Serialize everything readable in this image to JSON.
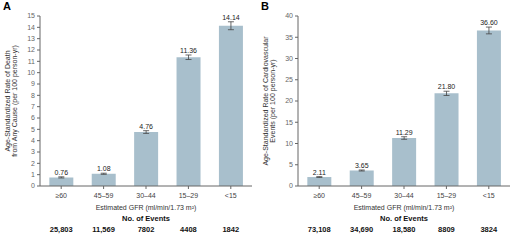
{
  "chart_data": [
    {
      "type": "bar",
      "title": "A",
      "categories": [
        "≥60",
        "45–59",
        "30–44",
        "15–29",
        "<15"
      ],
      "values": [
        0.76,
        1.08,
        4.76,
        11.36,
        14.14
      ],
      "errors": [
        0.05,
        0.05,
        0.12,
        0.2,
        0.35
      ],
      "data_labels": true,
      "value_labels": [
        "0.76",
        "1.08",
        "4.76",
        "11.36",
        "14.14"
      ],
      "xlabel": "Estimated GFR (ml/min/1.73 m²)",
      "ylabel": "Age-Standardized Rate of Death\nfrom Any Cause (per 100 person-yr)",
      "ylim": [
        0,
        15
      ],
      "yticks": [
        0,
        1,
        2,
        3,
        4,
        5,
        6,
        7,
        8,
        9,
        10,
        11,
        12,
        13,
        14,
        15
      ],
      "color": "#a8bfcc",
      "grid": false,
      "events": {
        "label": "No. of Events",
        "values": [
          "25,803",
          "11,569",
          "7802",
          "4408",
          "1842"
        ]
      }
    },
    {
      "type": "bar",
      "title": "B",
      "categories": [
        "≥60",
        "45–59",
        "30–44",
        "15–29",
        "<15"
      ],
      "values": [
        2.11,
        3.65,
        11.29,
        21.8,
        36.6
      ],
      "errors": [
        0.1,
        0.12,
        0.3,
        0.5,
        0.8
      ],
      "data_labels": true,
      "value_labels": [
        "2.11",
        "3.65",
        "11.29",
        "21.80",
        "36.60"
      ],
      "xlabel": "Estimated GFR (ml/min/1.73 m²)",
      "ylabel": "Age-Standardized Rate of Cardiovascular\nEvents (per 100 person-yr)",
      "ylim": [
        0,
        40
      ],
      "yticks": [
        0,
        5,
        10,
        15,
        20,
        25,
        30,
        35,
        40
      ],
      "color": "#a8bfcc",
      "grid": false,
      "events": {
        "label": "No. of Events",
        "values": [
          "73,108",
          "34,690",
          "18,580",
          "8809",
          "3824"
        ]
      }
    }
  ]
}
